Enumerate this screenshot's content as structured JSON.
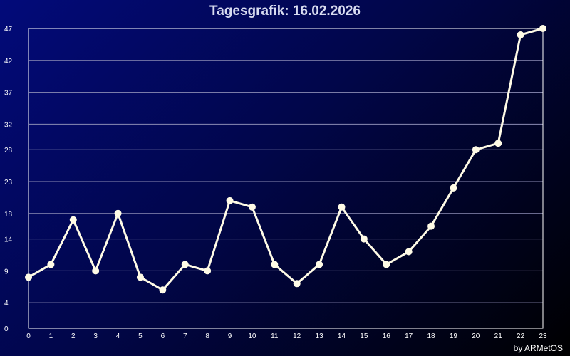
{
  "title": "Tagesgrafik: 16.02.2026",
  "credit": "by ARMetOS",
  "colors": {
    "background_start": "#020a7a",
    "background_end": "#000000",
    "grid": "#8c8cb4",
    "axis": "#ffffff",
    "line": "#fffbe6",
    "marker": "#fffbe6"
  },
  "chart_data": {
    "type": "line",
    "title": "Tagesgrafik: 16.02.2026",
    "xlabel": "",
    "ylabel": "",
    "x": [
      0,
      1,
      2,
      3,
      4,
      5,
      6,
      7,
      8,
      9,
      10,
      11,
      12,
      13,
      14,
      15,
      16,
      17,
      18,
      19,
      20,
      21,
      22,
      23
    ],
    "xticks": [
      "0",
      "1",
      "2",
      "3",
      "4",
      "5",
      "6",
      "7",
      "8",
      "9",
      "10",
      "11",
      "12",
      "13",
      "14",
      "15",
      "16",
      "17",
      "18",
      "19",
      "20",
      "21",
      "22",
      "23"
    ],
    "yticks": [
      "0",
      "4",
      "9",
      "14",
      "18",
      "23",
      "28",
      "32",
      "37",
      "42",
      "47"
    ],
    "ylim": [
      0,
      47
    ],
    "grid": true,
    "series": [
      {
        "values": [
          8,
          10,
          17,
          9,
          18,
          8,
          6,
          10,
          9,
          20,
          19,
          10,
          7,
          10,
          19,
          14,
          10,
          12,
          16,
          22,
          28,
          29,
          46,
          47
        ]
      }
    ]
  }
}
